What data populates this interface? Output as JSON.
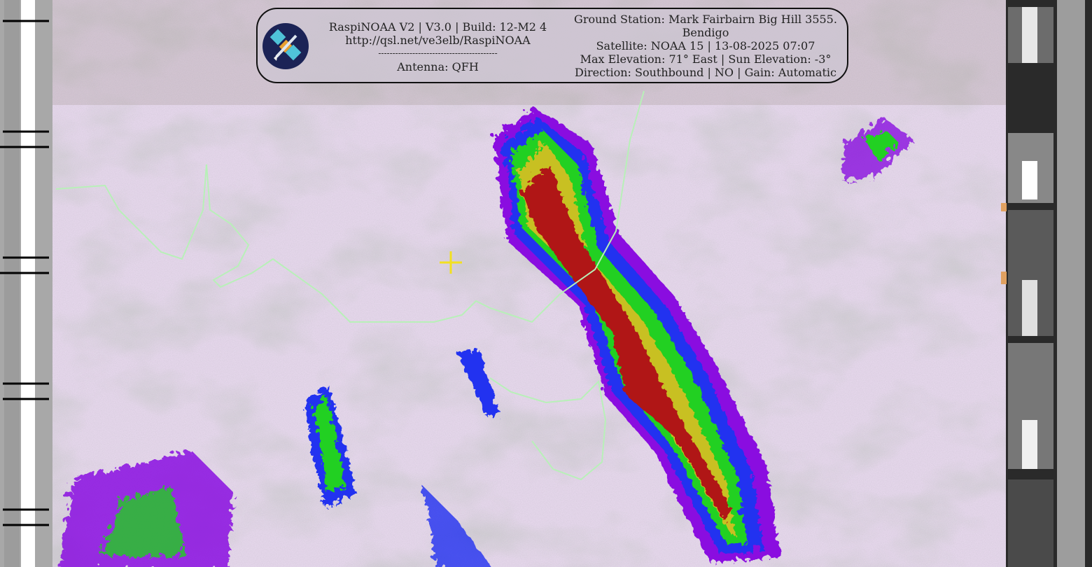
{
  "header": {
    "left_lines": [
      "RaspiNOAA V2 | V3.0 | Build: 12-M2 4",
      "http://qsl.net/ve3elb/RaspiNOAA",
      "------------------------------------------",
      "Antenna: QFH"
    ],
    "right_lines": [
      "Ground Station: Mark Fairbairn Big Hill 3555.",
      "Bendigo",
      "Satellite: NOAA 15 | 13-08-2025 07:07",
      "Max Elevation: 71° East | Sun Elevation: -3°",
      "Direction: Southbound | NO | Gain: Automatic"
    ],
    "logo_icon": "satellite-icon"
  },
  "colors": {
    "coastline": "#b8f0b8",
    "crosshair": "#f2e020",
    "background_cloud": "#e8d8ee",
    "precip_scale": [
      "#8a10e0",
      "#2030f0",
      "#20d020",
      "#f0f020",
      "#c01010",
      "#ffffff"
    ]
  }
}
